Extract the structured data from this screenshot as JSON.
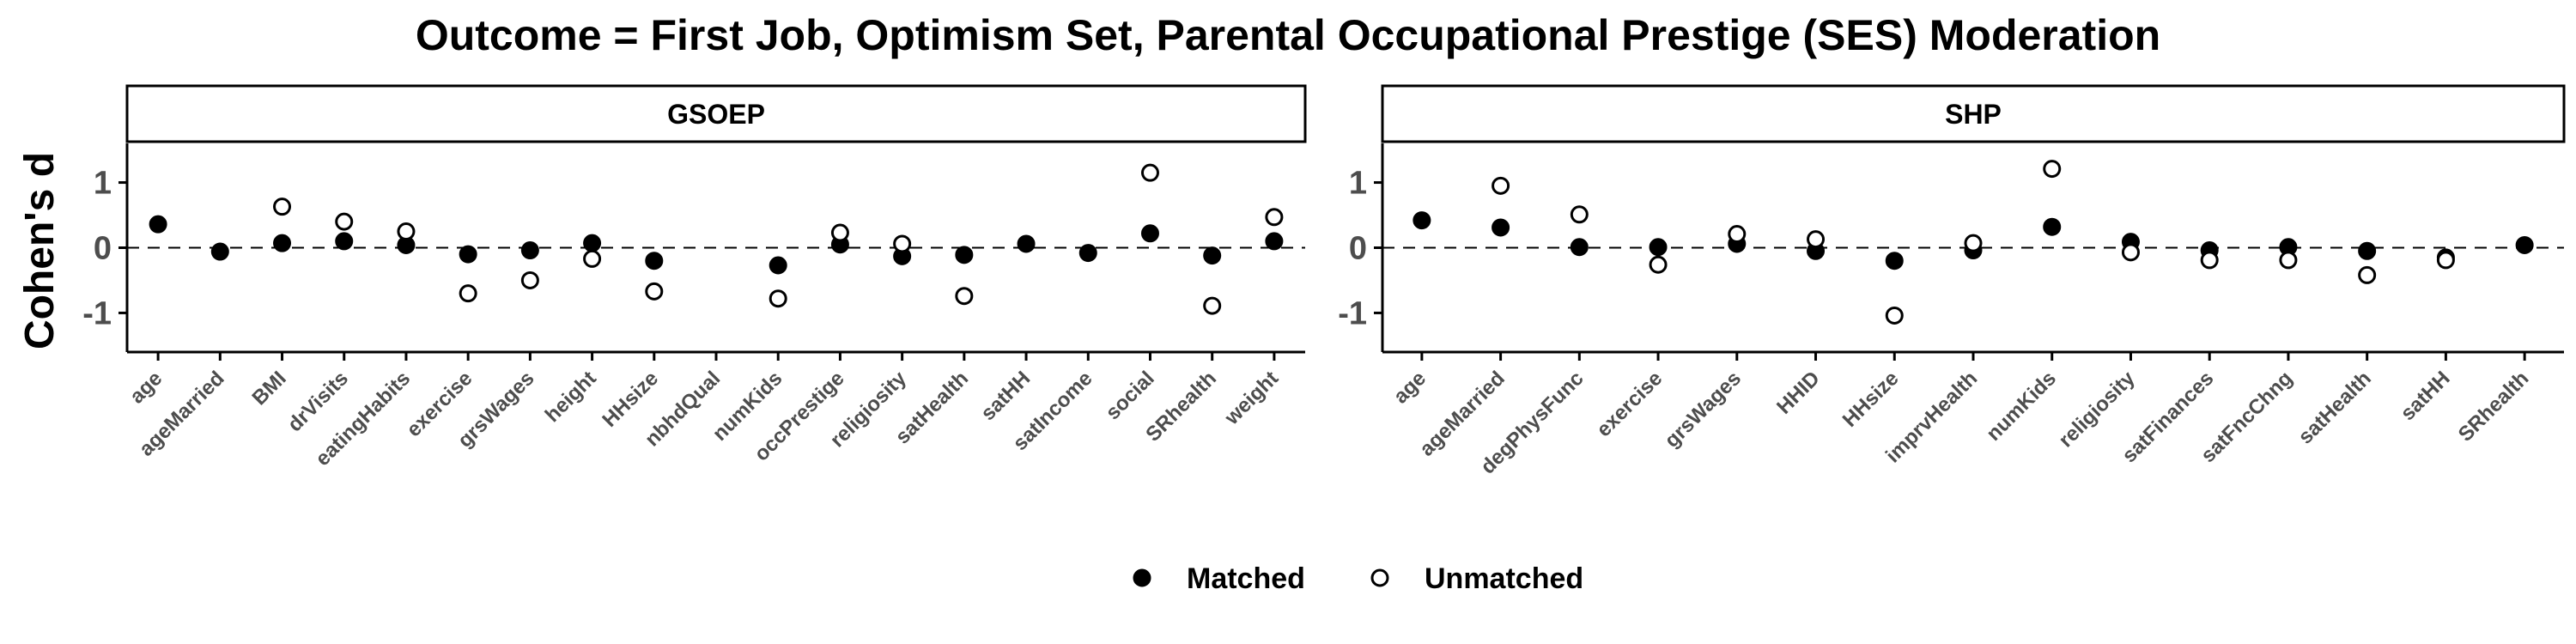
{
  "title": "Outcome = First Job, Optimism Set, Parental Occupational Prestige (SES) Moderation",
  "ylabel": "Cohen's d",
  "legend": {
    "items": [
      "Matched",
      "Unmatched"
    ],
    "placement": "bottom"
  },
  "chart_data": [
    {
      "type": "scatter",
      "panel": "GSOEP",
      "categories": [
        "age",
        "ageMarried",
        "BMI",
        "drVisits",
        "eatingHabits",
        "exercise",
        "grsWages",
        "height",
        "HHsize",
        "nbhdQual",
        "numKids",
        "occPrestige",
        "religiosity",
        "satHealth",
        "satHH",
        "satIncome",
        "social",
        "SRhealth",
        "weight"
      ],
      "ylim": [
        -1.6,
        1.6
      ],
      "yticks": [
        -1,
        0,
        1
      ],
      "reference_line": 0,
      "series": [
        {
          "name": "Matched",
          "values": [
            0.36,
            -0.06,
            0.07,
            0.1,
            0.04,
            -0.1,
            -0.04,
            0.07,
            -0.2,
            null,
            -0.27,
            0.05,
            -0.13,
            -0.11,
            0.06,
            -0.08,
            0.22,
            -0.12,
            0.1
          ]
        },
        {
          "name": "Unmatched",
          "values": [
            null,
            null,
            0.63,
            0.4,
            0.25,
            -0.7,
            -0.5,
            -0.17,
            -0.67,
            null,
            -0.78,
            0.23,
            0.06,
            -0.74,
            null,
            null,
            1.15,
            -0.89,
            0.47
          ]
        }
      ]
    },
    {
      "type": "scatter",
      "panel": "SHP",
      "categories": [
        "age",
        "ageMarried",
        "degPhysFunc",
        "exercise",
        "grsWages",
        "HHID",
        "HHsize",
        "imprvHealth",
        "numKids",
        "religiosity",
        "satFinances",
        "satFncChng",
        "satHealth",
        "satHH",
        "SRhealth"
      ],
      "ylim": [
        -1.6,
        1.6
      ],
      "yticks": [
        -1,
        0,
        1
      ],
      "reference_line": 0,
      "series": [
        {
          "name": "Matched",
          "values": [
            0.42,
            0.31,
            0.01,
            0.01,
            0.06,
            -0.05,
            -0.2,
            -0.04,
            0.32,
            0.09,
            -0.04,
            0.01,
            -0.05,
            -0.15,
            0.04
          ]
        },
        {
          "name": "Unmatched",
          "values": [
            null,
            0.95,
            0.51,
            -0.26,
            0.21,
            0.13,
            -1.04,
            0.07,
            1.21,
            -0.07,
            -0.19,
            -0.19,
            -0.42,
            -0.19,
            null
          ]
        }
      ]
    }
  ]
}
